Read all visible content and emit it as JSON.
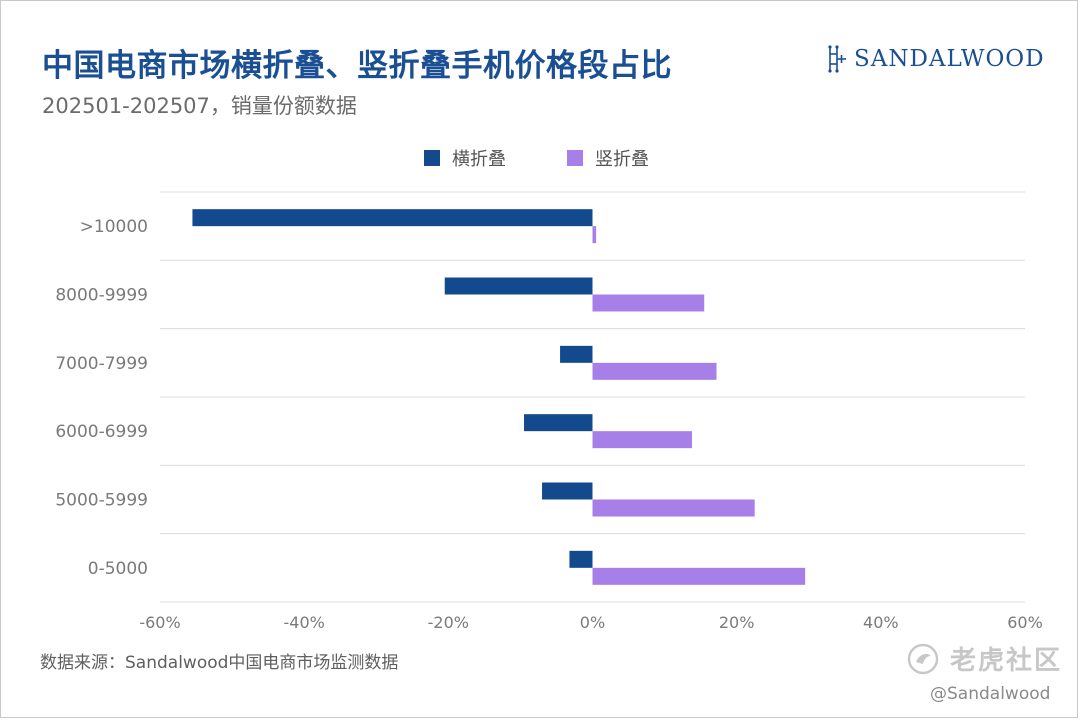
{
  "title": "中国电商市场横折叠、竖折叠手机价格段占比",
  "subtitle": "202501-202507，销量份额数据",
  "brand": "SANDALWOOD",
  "source": "数据来源：Sandalwood中国电商市场监测数据",
  "watermark": {
    "logo_text": "老虎社区",
    "handle": "@Sandalwood"
  },
  "colors": {
    "horizontal_fold": "#134a8e",
    "vertical_fold": "#a77fe8",
    "title": "#1b4f93"
  },
  "chart_data": {
    "type": "bar",
    "orientation": "horizontal",
    "categories": [
      ">10000",
      "8000-9999",
      "7000-7999",
      "6000-6999",
      "5000-5999",
      "0-5000"
    ],
    "x_ticks": [
      "-60%",
      "-40%",
      "-20%",
      "0%",
      "20%",
      "40%",
      "60%"
    ],
    "xlim": [
      -60,
      60
    ],
    "unit": "%",
    "grid": "horizontal separators between categories",
    "legend_position": "top-center",
    "series": [
      {
        "name": "横折叠",
        "values": [
          -55.5,
          -20.5,
          -4.5,
          -9.5,
          -7.0,
          -3.2
        ]
      },
      {
        "name": "竖折叠",
        "values": [
          0.5,
          15.5,
          17.2,
          13.8,
          22.5,
          29.5
        ]
      }
    ]
  }
}
